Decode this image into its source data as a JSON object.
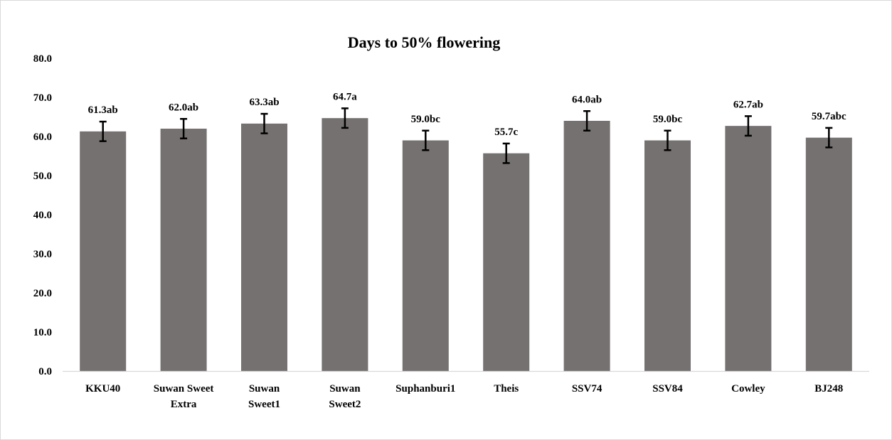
{
  "chart_data": {
    "type": "bar",
    "title": "Days to 50% flowering",
    "xlabel": "",
    "ylabel": "",
    "ylim": [
      0,
      80
    ],
    "yticks": [
      "0.0",
      "10.0",
      "20.0",
      "30.0",
      "40.0",
      "50.0",
      "60.0",
      "70.0",
      "80.0"
    ],
    "categories": [
      [
        "KKU40"
      ],
      [
        "Suwan Sweet",
        "Extra"
      ],
      [
        "Suwan",
        "Sweet1"
      ],
      [
        "Suwan",
        "Sweet2"
      ],
      [
        "Suphanburi1"
      ],
      [
        "Theis"
      ],
      [
        "SSV74"
      ],
      [
        "SSV84"
      ],
      [
        "Cowley"
      ],
      [
        "BJ248"
      ]
    ],
    "values": [
      61.3,
      62.0,
      63.3,
      64.7,
      59.0,
      55.7,
      64.0,
      59.0,
      62.7,
      59.7
    ],
    "errors": [
      2.5,
      2.5,
      2.5,
      2.5,
      2.5,
      2.5,
      2.5,
      2.5,
      2.5,
      2.5
    ],
    "data_labels": [
      "61.3ab",
      "62.0ab",
      "63.3ab",
      "64.7a",
      "59.0bc",
      "55.7c",
      "64.0ab",
      "59.0bc",
      "62.7ab",
      "59.7abc"
    ],
    "bar_color": "#767171",
    "grid": false,
    "legend": "none"
  }
}
